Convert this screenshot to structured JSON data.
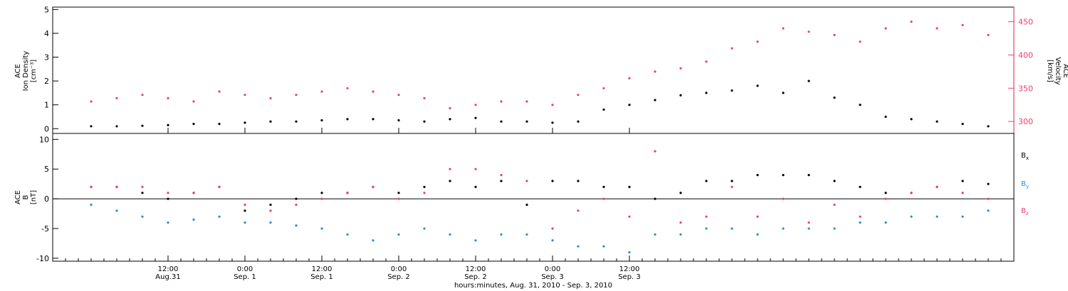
{
  "chart_data": [
    {
      "type": "scatter",
      "panel": "top",
      "ylabel_left": [
        "ACE",
        "Ion Density",
        "[cm⁻³]"
      ],
      "ylabel_right": [
        "ACE",
        "Velocity",
        "[km/s]"
      ],
      "ylim_left": [
        -0.2,
        5.1
      ],
      "ylim_right": [
        282,
        472
      ],
      "yticks_left": [
        "0",
        "1",
        "2",
        "3",
        "4",
        "5"
      ],
      "yticks_right": [
        "300",
        "350",
        "400",
        "450"
      ],
      "right_axis_color": "#e8416e",
      "series": [
        {
          "role": "density",
          "axis": "left",
          "color": "#000000",
          "x": [
            0,
            4,
            8,
            12,
            16,
            20,
            24,
            28,
            32,
            36,
            40,
            44,
            48,
            52,
            56,
            60,
            64,
            68,
            72,
            76,
            80,
            84,
            88,
            92,
            96,
            100,
            104,
            108,
            112,
            116,
            120,
            124,
            128,
            132,
            136,
            140
          ],
          "values": [
            0.1,
            0.1,
            0.12,
            0.15,
            0.2,
            0.2,
            0.25,
            0.3,
            0.3,
            0.35,
            0.4,
            0.4,
            0.35,
            0.3,
            0.4,
            0.45,
            0.3,
            0.3,
            0.25,
            0.3,
            0.8,
            1.0,
            1.2,
            1.4,
            1.5,
            1.6,
            1.8,
            1.5,
            2.0,
            1.3,
            1.0,
            0.5,
            0.4,
            0.3,
            0.2,
            0.1
          ]
        },
        {
          "role": "velocity",
          "axis": "right",
          "color": "#e8416e",
          "x": [
            0,
            4,
            8,
            12,
            16,
            20,
            24,
            28,
            32,
            36,
            40,
            44,
            48,
            52,
            56,
            60,
            64,
            68,
            72,
            76,
            80,
            84,
            88,
            92,
            96,
            100,
            104,
            108,
            112,
            116,
            120,
            124,
            128,
            132,
            136,
            140
          ],
          "values": [
            330,
            335,
            340,
            335,
            330,
            345,
            340,
            335,
            340,
            345,
            350,
            345,
            340,
            335,
            320,
            325,
            330,
            330,
            325,
            340,
            350,
            365,
            375,
            380,
            390,
            410,
            420,
            440,
            435,
            430,
            420,
            440,
            450,
            440,
            445,
            430
          ]
        }
      ]
    },
    {
      "type": "scatter",
      "panel": "bottom",
      "ylabel_left": [
        "ACE",
        "B",
        "[nT]"
      ],
      "ylim": [
        -10.5,
        11
      ],
      "yticks": [
        "-10",
        "-5",
        "0",
        "5",
        "10"
      ],
      "legend_placement": "right",
      "series": [
        {
          "name": "B",
          "sub": "x",
          "color": "#000000",
          "x": [
            0,
            4,
            8,
            12,
            16,
            20,
            24,
            28,
            32,
            36,
            40,
            44,
            48,
            52,
            56,
            60,
            64,
            68,
            72,
            76,
            80,
            84,
            88,
            92,
            96,
            100,
            104,
            108,
            112,
            116,
            120,
            124,
            128,
            132,
            136,
            140
          ],
          "values": [
            2,
            2,
            1,
            0,
            1,
            2,
            -2,
            -1,
            0,
            1,
            1,
            2,
            1,
            2,
            3,
            2,
            3,
            -1,
            3,
            3,
            2,
            2,
            0,
            1,
            3,
            3,
            4,
            4,
            4,
            3,
            2,
            1,
            1,
            2,
            3,
            2.5
          ]
        },
        {
          "name": "B",
          "sub": "y",
          "color": "#1f8ee6",
          "x": [
            0,
            4,
            8,
            12,
            16,
            20,
            24,
            28,
            32,
            36,
            40,
            44,
            48,
            52,
            56,
            60,
            64,
            68,
            72,
            76,
            80,
            84,
            88,
            92,
            96,
            100,
            104,
            108,
            112,
            116,
            120,
            124,
            128,
            132,
            136,
            140
          ],
          "values": [
            -1,
            -2,
            -3,
            -4,
            -3.5,
            -3,
            -4,
            -4,
            -4.5,
            -5,
            -6,
            -7,
            -6,
            -5,
            -6,
            -7,
            -6,
            -6,
            -7,
            -8,
            -8,
            -9,
            -6,
            -6,
            -5,
            -5,
            -6,
            -5,
            -5,
            -5,
            -4,
            -4,
            -3,
            -3,
            -3,
            -2
          ]
        },
        {
          "name": "B",
          "sub": "z",
          "color": "#e8416e",
          "x": [
            0,
            4,
            8,
            12,
            16,
            20,
            24,
            28,
            32,
            36,
            40,
            44,
            48,
            52,
            56,
            60,
            64,
            68,
            72,
            76,
            80,
            84,
            88,
            92,
            96,
            100,
            104,
            108,
            112,
            116,
            120,
            124,
            128,
            132,
            136,
            140
          ],
          "values": [
            2,
            2,
            2,
            1,
            1,
            2,
            -1,
            -2,
            -1,
            0,
            1,
            2,
            0,
            1,
            5,
            5,
            4,
            3,
            -5,
            -2,
            0,
            -3,
            8,
            -4,
            -3,
            2,
            -3,
            0,
            -4,
            -1,
            -3,
            0,
            1,
            2,
            1,
            0
          ]
        }
      ]
    }
  ],
  "x_axis": {
    "xlim_hours": [
      -6,
      144
    ],
    "ticks": [
      {
        "hour": 12,
        "time": "12:00",
        "date": "Aug.31"
      },
      {
        "hour": 24,
        "time": "0:00",
        "date": "Sep. 1"
      },
      {
        "hour": 36,
        "time": "12:00",
        "date": "Sep. 1"
      },
      {
        "hour": 48,
        "time": "0:00",
        "date": "Sep. 2"
      },
      {
        "hour": 60,
        "time": "12:00",
        "date": "Sep. 2"
      },
      {
        "hour": 72,
        "time": "0:00",
        "date": "Sep. 3"
      },
      {
        "hour": 84,
        "time": "12:00",
        "date": "Sep. 3"
      }
    ],
    "xlabel": "hours:minutes, Aug. 31, 2010 - Sep.  3, 2010"
  }
}
